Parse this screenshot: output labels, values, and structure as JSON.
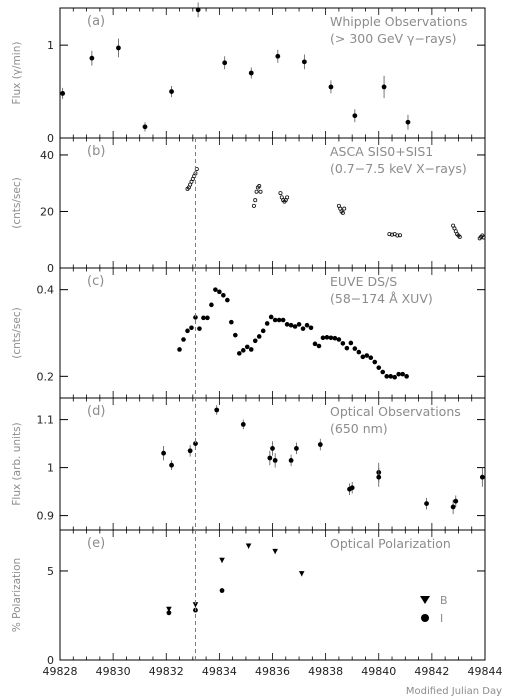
{
  "figure": {
    "xlabel": "Modified Julian Day",
    "x_ticks": [
      49828,
      49830,
      49832,
      49834,
      49836,
      49838,
      49840,
      49842,
      49844
    ],
    "marker_mjd": 49833.1
  },
  "chart_data": [
    {
      "type": "scatter",
      "panel_label": "(a)",
      "title_lines": [
        "Whipple Observations",
        "(> 300 GeV γ−rays)"
      ],
      "ylabel": "Flux (γ/min)",
      "xlim": [
        49828,
        49844
      ],
      "ylim": [
        0,
        1.4
      ],
      "y_ticks": [
        0,
        1
      ],
      "series": [
        {
          "x": [
            49828.1,
            49829.2,
            49830.2,
            49831.2,
            49832.2,
            49833.2,
            49834.2,
            49835.2,
            49836.2,
            49837.2,
            49838.2,
            49839.1,
            49840.2,
            49841.1
          ],
          "y": [
            0.48,
            0.86,
            0.97,
            0.12,
            0.5,
            1.38,
            0.81,
            0.7,
            0.88,
            0.82,
            0.55,
            0.24,
            0.55,
            0.17
          ],
          "err": [
            0.06,
            0.08,
            0.1,
            0.05,
            0.06,
            0.08,
            0.07,
            0.06,
            0.07,
            0.08,
            0.07,
            0.07,
            0.12,
            0.08
          ]
        }
      ]
    },
    {
      "type": "scatter",
      "panel_label": "(b)",
      "title_lines": [
        "ASCA SIS0+SIS1",
        "(0.7−7.5 keV X−rays)"
      ],
      "ylabel": "(cnts/sec)",
      "xlim": [
        49828,
        49844
      ],
      "ylim": [
        0,
        46
      ],
      "y_ticks": [
        0,
        20,
        40
      ],
      "series": [
        {
          "x": [
            49832.8,
            49832.85,
            49832.9,
            49832.95,
            49833.0,
            49833.05,
            49833.1,
            49833.15,
            49835.3,
            49835.35,
            49835.4,
            49835.45,
            49835.5,
            49835.55,
            49836.3,
            49836.35,
            49836.4,
            49836.45,
            49836.5,
            49836.55,
            49838.5,
            49838.55,
            49838.6,
            49838.65,
            49838.7,
            49840.4,
            49840.5,
            49840.6,
            49840.7,
            49840.8,
            49842.8,
            49842.85,
            49842.9,
            49842.95,
            49843.0,
            49843.05,
            49843.8,
            49843.85,
            49843.9,
            49843.95
          ],
          "y": [
            28,
            28.5,
            29.5,
            30.5,
            31.5,
            32.5,
            33.5,
            35,
            22,
            24,
            27,
            28.5,
            29,
            27,
            26.5,
            25,
            24,
            23.5,
            24,
            25,
            22,
            21,
            20,
            19.5,
            21,
            12,
            11.8,
            12,
            11.5,
            11.6,
            15,
            14,
            13,
            12,
            11.5,
            11,
            10.5,
            11,
            11.5,
            10.8
          ]
        }
      ]
    },
    {
      "type": "scatter",
      "panel_label": "(c)",
      "title_lines": [
        "EUVE DS/S",
        "(58−174 Å XUV)"
      ],
      "ylabel": "(cnts/sec)",
      "xlim": [
        49828,
        49844
      ],
      "ylim": [
        0.15,
        0.45
      ],
      "y_ticks": [
        0.2,
        0.4
      ],
      "series": [
        {
          "x": [
            49832.5,
            49832.65,
            49832.8,
            49832.95,
            49833.1,
            49833.25,
            49833.4,
            49833.55,
            49833.7,
            49833.85,
            49834.0,
            49834.15,
            49834.3,
            49834.45,
            49834.6,
            49834.75,
            49834.9,
            49835.05,
            49835.2,
            49835.35,
            49835.5,
            49835.65,
            49835.8,
            49835.95,
            49836.1,
            49836.25,
            49836.4,
            49836.55,
            49836.7,
            49836.85,
            49837.0,
            49837.15,
            49837.3,
            49837.45,
            49837.6,
            49837.75,
            49837.9,
            49838.05,
            49838.2,
            49838.35,
            49838.5,
            49838.65,
            49838.8,
            49838.95,
            49839.1,
            49839.25,
            49839.4,
            49839.55,
            49839.7,
            49839.85,
            49840.0,
            49840.15,
            49840.3,
            49840.45,
            49840.6,
            49840.75,
            49840.9,
            49841.05
          ],
          "y": [
            0.262,
            0.285,
            0.305,
            0.312,
            0.336,
            0.31,
            0.335,
            0.335,
            0.365,
            0.4,
            0.395,
            0.387,
            0.376,
            0.325,
            0.295,
            0.253,
            0.26,
            0.268,
            0.262,
            0.282,
            0.292,
            0.305,
            0.322,
            0.337,
            0.33,
            0.33,
            0.33,
            0.32,
            0.318,
            0.315,
            0.32,
            0.31,
            0.318,
            0.312,
            0.275,
            0.27,
            0.289,
            0.29,
            0.289,
            0.288,
            0.285,
            0.276,
            0.265,
            0.277,
            0.264,
            0.256,
            0.245,
            0.248,
            0.243,
            0.233,
            0.22,
            0.21,
            0.2,
            0.2,
            0.198,
            0.205,
            0.205,
            0.2
          ]
        }
      ]
    },
    {
      "type": "scatter",
      "panel_label": "(d)",
      "title_lines": [
        "Optical Observations",
        "(650 nm)"
      ],
      "ylabel": "Flux (arb. units)",
      "xlim": [
        49828,
        49844
      ],
      "ylim": [
        0.87,
        1.145
      ],
      "y_ticks": [
        0.9,
        1,
        1.1
      ],
      "series": [
        {
          "x": [
            49831.9,
            49832.2,
            49832.9,
            49833.1,
            49833.9,
            49834.9,
            49835.9,
            49836.0,
            49836.1,
            49836.7,
            49836.9,
            49837.8,
            49838.9,
            49839.0,
            49840.0,
            49840.0,
            49841.8,
            49842.8,
            49842.9,
            49843.9
          ],
          "y": [
            1.03,
            1.005,
            1.035,
            1.05,
            1.12,
            1.09,
            1.02,
            1.04,
            1.015,
            1.015,
            1.04,
            1.048,
            0.955,
            0.958,
            0.99,
            0.98,
            0.925,
            0.918,
            0.93,
            0.98
          ],
          "err": [
            0.015,
            0.01,
            0.012,
            0.012,
            0.01,
            0.01,
            0.015,
            0.015,
            0.015,
            0.012,
            0.012,
            0.012,
            0.012,
            0.012,
            0.02,
            0.02,
            0.012,
            0.015,
            0.012,
            0.02
          ]
        }
      ]
    },
    {
      "type": "scatter",
      "panel_label": "(e)",
      "title_lines": [
        "Optical Polarization"
      ],
      "ylabel": "% Polarization",
      "xlim": [
        49828,
        49844
      ],
      "ylim": [
        0,
        7.3
      ],
      "y_ticks": [
        0,
        5
      ],
      "legend": [
        {
          "label": "B",
          "marker": "triangle-down"
        },
        {
          "label": "I",
          "marker": "circle"
        }
      ],
      "series": [
        {
          "name": "B",
          "marker": "triangle-down",
          "x": [
            49832.1,
            49833.1,
            49834.1,
            49835.1,
            49836.1,
            49837.1
          ],
          "y": [
            2.85,
            3.1,
            5.6,
            6.4,
            6.1,
            4.85
          ],
          "err": [
            0.15,
            0.15,
            0.15,
            0.15,
            0.15,
            0.15
          ]
        },
        {
          "name": "I",
          "marker": "circle",
          "x": [
            49832.1,
            49833.1,
            49834.1
          ],
          "y": [
            2.65,
            2.8,
            3.9
          ],
          "err": [
            0.1,
            0.1,
            0.1
          ]
        }
      ]
    }
  ]
}
